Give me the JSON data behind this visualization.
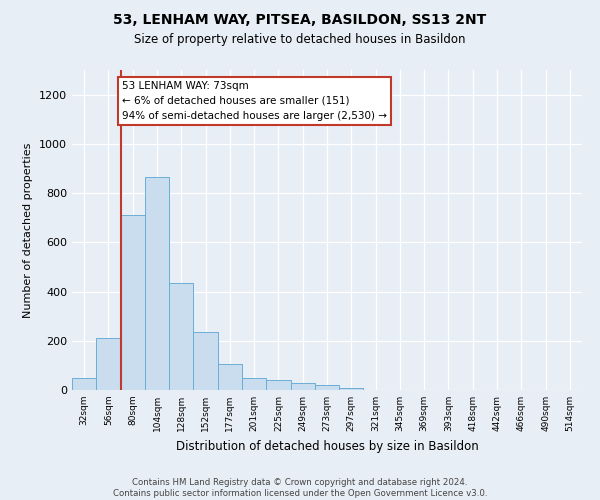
{
  "title": "53, LENHAM WAY, PITSEA, BASILDON, SS13 2NT",
  "subtitle": "Size of property relative to detached houses in Basildon",
  "xlabel": "Distribution of detached houses by size in Basildon",
  "ylabel": "Number of detached properties",
  "categories": [
    "32sqm",
    "56sqm",
    "80sqm",
    "104sqm",
    "128sqm",
    "152sqm",
    "177sqm",
    "201sqm",
    "225sqm",
    "249sqm",
    "273sqm",
    "297sqm",
    "321sqm",
    "345sqm",
    "369sqm",
    "393sqm",
    "418sqm",
    "442sqm",
    "466sqm",
    "490sqm",
    "514sqm"
  ],
  "values": [
    50,
    210,
    710,
    865,
    435,
    235,
    105,
    48,
    40,
    30,
    20,
    10,
    0,
    0,
    0,
    0,
    0,
    0,
    0,
    0,
    0
  ],
  "bar_color": "#c9ddef",
  "bar_edge_color": "#6aaed6",
  "annotation_text": "53 LENHAM WAY: 73sqm\n← 6% of detached houses are smaller (151)\n94% of semi-detached houses are larger (2,530) →",
  "annotation_box_facecolor": "#ffffff",
  "annotation_box_edgecolor": "#c0392b",
  "vline_color": "#c0392b",
  "ylim": [
    0,
    1300
  ],
  "yticks": [
    0,
    200,
    400,
    600,
    800,
    1000,
    1200
  ],
  "background_color": "#e8eef5",
  "grid_color": "#ffffff",
  "title_fontsize": 10,
  "subtitle_fontsize": 8.5,
  "footer": "Contains HM Land Registry data © Crown copyright and database right 2024.\nContains public sector information licensed under the Open Government Licence v3.0."
}
